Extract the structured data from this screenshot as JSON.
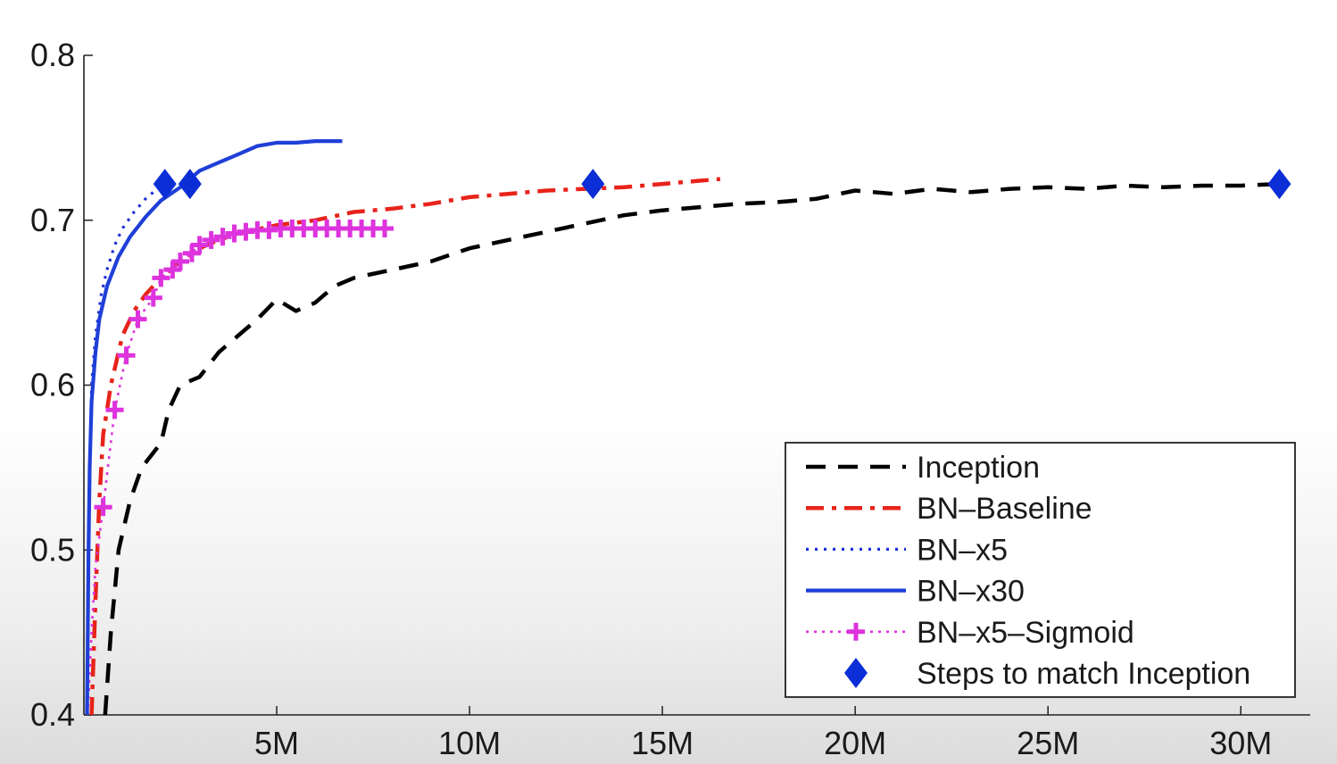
{
  "chart_data": {
    "type": "line",
    "title": "",
    "xlabel": "",
    "ylabel": "",
    "xlim": [
      0,
      31800000
    ],
    "ylim": [
      0.4,
      0.8
    ],
    "x_ticks": [
      {
        "value": 5000000,
        "label": "5M"
      },
      {
        "value": 10000000,
        "label": "10M"
      },
      {
        "value": 15000000,
        "label": "15M"
      },
      {
        "value": 20000000,
        "label": "20M"
      },
      {
        "value": 25000000,
        "label": "25M"
      },
      {
        "value": 30000000,
        "label": "30M"
      }
    ],
    "y_ticks": [
      {
        "value": 0.4,
        "label": "0.4"
      },
      {
        "value": 0.5,
        "label": "0.5"
      },
      {
        "value": 0.6,
        "label": "0.6"
      },
      {
        "value": 0.7,
        "label": "0.7"
      },
      {
        "value": 0.8,
        "label": "0.8"
      }
    ],
    "grid": false,
    "legend_position": "bottom-right",
    "series": [
      {
        "name": "Inception",
        "color": "#000000",
        "style": "dashed",
        "x": [
          550000,
          700000,
          900000,
          1200000,
          1500000,
          2000000,
          2200000,
          2500000,
          3000000,
          3500000,
          4000000,
          4500000,
          5000000,
          5500000,
          6000000,
          6500000,
          7000000,
          8000000,
          9000000,
          10000000,
          11000000,
          12000000,
          13000000,
          14000000,
          15000000,
          16000000,
          17000000,
          18000000,
          19000000,
          20000000,
          21000000,
          22000000,
          23000000,
          24000000,
          25000000,
          26000000,
          27000000,
          28000000,
          29000000,
          30000000,
          31000000
        ],
        "y": [
          0.4,
          0.45,
          0.5,
          0.53,
          0.55,
          0.565,
          0.585,
          0.6,
          0.605,
          0.62,
          0.63,
          0.64,
          0.652,
          0.645,
          0.65,
          0.66,
          0.665,
          0.67,
          0.675,
          0.683,
          0.688,
          0.693,
          0.698,
          0.703,
          0.706,
          0.708,
          0.71,
          0.711,
          0.713,
          0.718,
          0.716,
          0.719,
          0.717,
          0.719,
          0.72,
          0.719,
          0.721,
          0.72,
          0.721,
          0.721,
          0.722
        ]
      },
      {
        "name": "BN–Baseline",
        "color": "#e8231a",
        "style": "dashdot",
        "x": [
          200000,
          300000,
          400000,
          500000,
          700000,
          1000000,
          1300000,
          1600000,
          2000000,
          2500000,
          3000000,
          3500000,
          4000000,
          5000000,
          6000000,
          7000000,
          8000000,
          9000000,
          10000000,
          11000000,
          12000000,
          13000000,
          14000000,
          15000000,
          16000000,
          16500000
        ],
        "y": [
          0.4,
          0.47,
          0.53,
          0.57,
          0.6,
          0.63,
          0.645,
          0.655,
          0.665,
          0.675,
          0.683,
          0.688,
          0.692,
          0.697,
          0.7,
          0.705,
          0.707,
          0.71,
          0.714,
          0.716,
          0.718,
          0.719,
          0.72,
          0.722,
          0.724,
          0.725
        ]
      },
      {
        "name": "BN–x5",
        "color": "#1d2fd6",
        "style": "dotted",
        "x": [
          80000,
          120000,
          200000,
          300000,
          450000,
          600000,
          800000,
          1000000,
          1300000,
          1600000,
          1900000,
          2100000
        ],
        "y": [
          0.4,
          0.5,
          0.6,
          0.63,
          0.655,
          0.67,
          0.685,
          0.695,
          0.705,
          0.713,
          0.719,
          0.722
        ]
      },
      {
        "name": "BN–x30",
        "color": "#1f3fd8",
        "style": "solid",
        "x": [
          80000,
          120000,
          150000,
          200000,
          300000,
          400000,
          600000,
          900000,
          1200000,
          1600000,
          2000000,
          2500000,
          3000000,
          3500000,
          4000000,
          4500000,
          5000000,
          5500000,
          6000000,
          6700000
        ],
        "y": [
          0.4,
          0.5,
          0.55,
          0.59,
          0.62,
          0.64,
          0.66,
          0.678,
          0.69,
          0.702,
          0.712,
          0.72,
          0.73,
          0.735,
          0.74,
          0.745,
          0.747,
          0.747,
          0.748,
          0.748
        ],
        "markers_x": [
          2100000,
          2750000
        ],
        "markers_y": [
          0.722,
          0.722
        ]
      },
      {
        "name": "BN–x5–Sigmoid",
        "color": "#dd33dd",
        "style": "dotted-plus",
        "x": [
          100000,
          200000,
          300000,
          500000,
          800000,
          1100000,
          1400000,
          1800000,
          2000000,
          2300000,
          2500000,
          2800000,
          3000000,
          3300000,
          3600000,
          3900000,
          4200000,
          4500000,
          4800000,
          5100000,
          5400000,
          5700000,
          6000000,
          6300000,
          6600000,
          6900000,
          7200000,
          7500000,
          7800000
        ],
        "y": [
          0.4,
          0.45,
          0.49,
          0.526,
          0.585,
          0.618,
          0.64,
          0.653,
          0.665,
          0.67,
          0.675,
          0.68,
          0.685,
          0.688,
          0.69,
          0.692,
          0.693,
          0.694,
          0.694,
          0.695,
          0.695,
          0.695,
          0.695,
          0.695,
          0.695,
          0.695,
          0.695,
          0.695,
          0.695
        ],
        "marker_indices": [
          3,
          4,
          5,
          6,
          7,
          8,
          9,
          10,
          11,
          12,
          13,
          14,
          15,
          16,
          17,
          18,
          19,
          20,
          21,
          22,
          23,
          24,
          25,
          26,
          27,
          28
        ]
      },
      {
        "name": "Steps to match Inception",
        "color": "#0b2ed6",
        "style": "diamond",
        "x": [
          2100000,
          2750000,
          13200000,
          31000000
        ],
        "y": [
          0.722,
          0.722,
          0.722,
          0.722
        ]
      }
    ]
  }
}
